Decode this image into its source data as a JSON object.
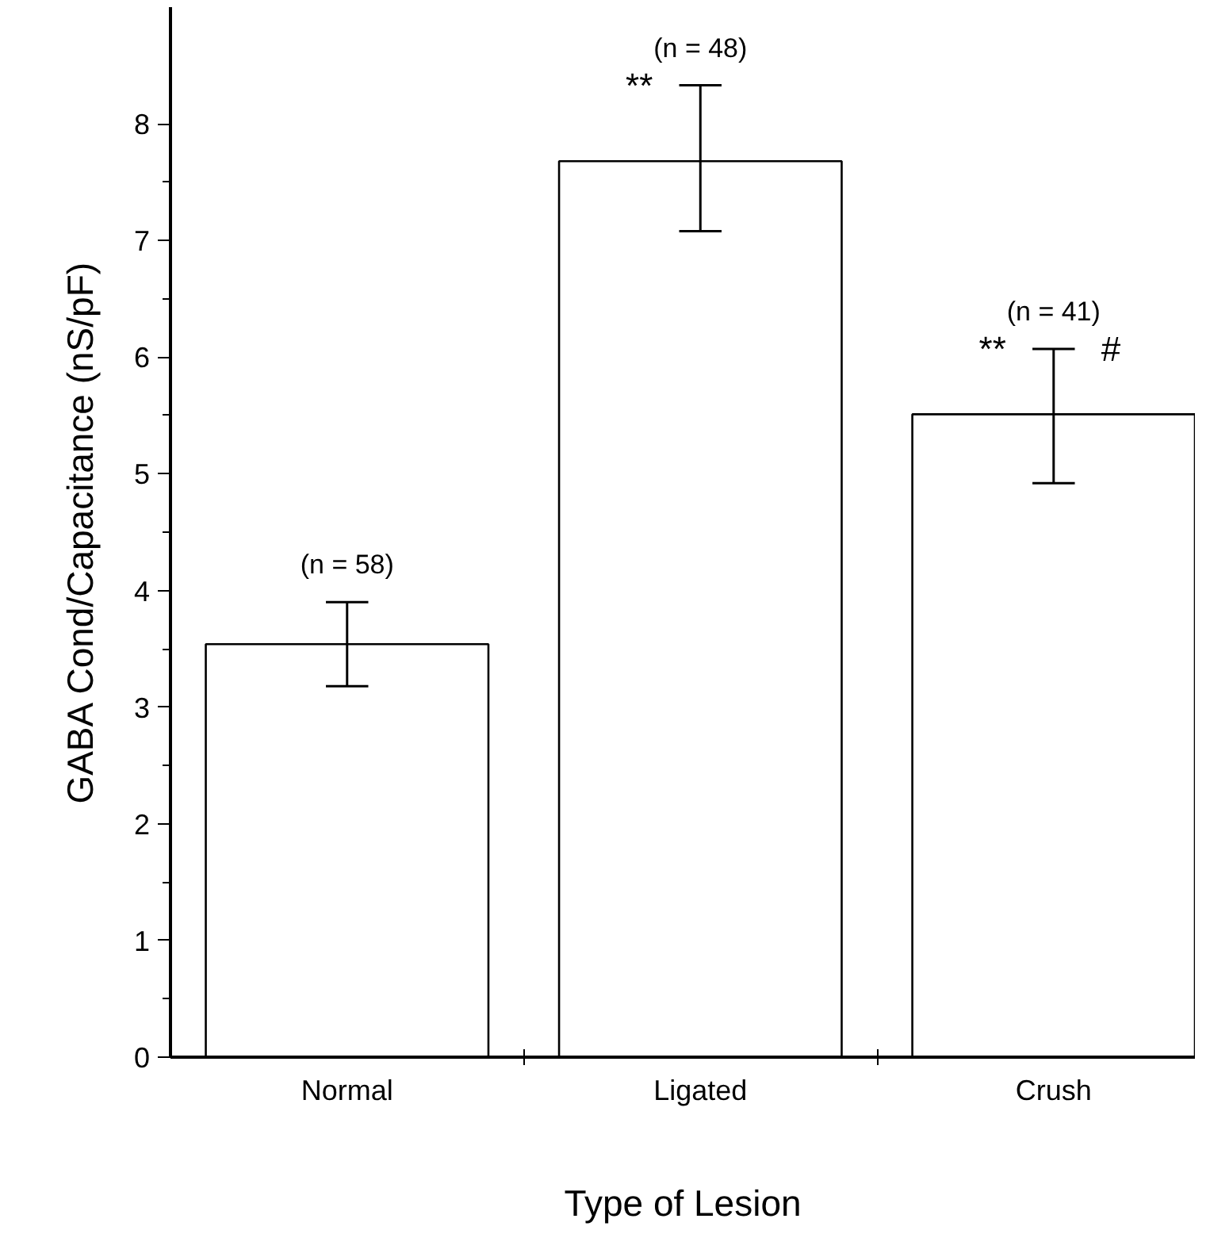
{
  "chart_data": {
    "type": "bar",
    "xlabel": "Type of Lesion",
    "ylabel": "GABA Cond/Capacitance (nS/pF)",
    "categories": [
      "Normal",
      "Ligated",
      "Crush"
    ],
    "values": [
      3.54,
      7.68,
      5.51
    ],
    "errors": [
      [
        3.18,
        3.9
      ],
      [
        7.08,
        8.33
      ],
      [
        4.92,
        6.07
      ]
    ],
    "color": "#ffffff",
    "ylim": [
      0,
      9
    ],
    "yticks": [
      0,
      1,
      2,
      3,
      4,
      5,
      6,
      7,
      8
    ],
    "grid": false,
    "annotations": [
      {
        "text": "(n = 58)",
        "x": "Normal",
        "y": 3.9
      },
      {
        "text": "(n = 48)",
        "x": "Ligated",
        "y": 8.33
      },
      {
        "text": "**",
        "x": "Ligated",
        "y": 8.33
      },
      {
        "text": "(n = 41)",
        "x": "Crush",
        "y": 6.07
      },
      {
        "text": "**",
        "x": "Crush",
        "y": 6.07
      },
      {
        "text": "#",
        "x": "Crush",
        "y": 6.07
      }
    ]
  }
}
